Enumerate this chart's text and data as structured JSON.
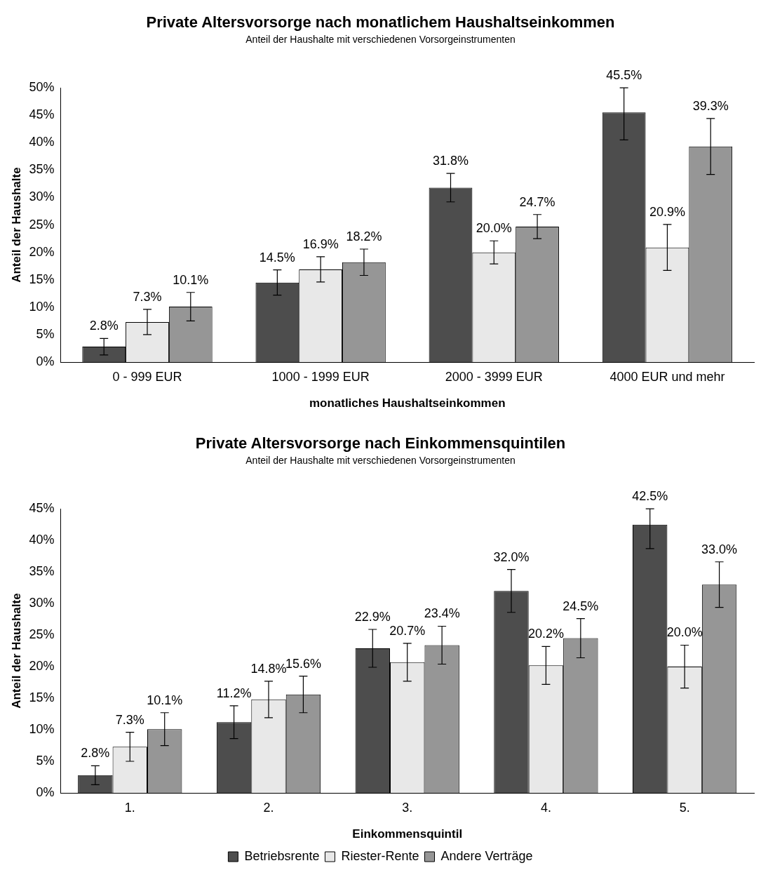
{
  "chart_data": [
    {
      "type": "bar",
      "title": "Private Altersvorsorge nach monatlichem Haushaltseinkommen",
      "subtitle": "Anteil der Haushalte mit verschiedenen Vorsorgeinstrumenten",
      "xlabel": "monatliches Haushaltseinkommen",
      "ylabel": "Anteil der Haushalte",
      "categories": [
        "0 - 999 EUR",
        "1000 - 1999 EUR",
        "2000 - 3999 EUR",
        "4000 EUR und mehr"
      ],
      "series": [
        {
          "color": "#4d4d4d",
          "values": [
            2.8,
            14.5,
            31.8,
            45.5
          ],
          "value_labels": [
            "2.8%",
            "14.5%",
            "31.8%",
            "45.5%"
          ],
          "errors": [
            1.5,
            2.3,
            2.6,
            [
              40.5,
              50
            ]
          ]
        },
        {
          "color": "#e8e8e8",
          "values": [
            7.3,
            16.9,
            20.0,
            20.9
          ],
          "value_labels": [
            "7.3%",
            "16.9%",
            "20.0%",
            "20.9%"
          ],
          "errors": [
            2.3,
            2.3,
            2.1,
            4.2
          ]
        },
        {
          "color": "#969696",
          "values": [
            10.1,
            18.2,
            24.7,
            39.3
          ],
          "value_labels": [
            "10.1%",
            "18.2%",
            "24.7%",
            "39.3%"
          ],
          "errors": [
            2.6,
            2.4,
            2.2,
            5.1
          ]
        }
      ],
      "ylim": [
        0,
        50
      ],
      "yticks": [
        {
          "value": 0,
          "label": "0%"
        },
        {
          "value": 5,
          "label": "5%"
        },
        {
          "value": 10,
          "label": "10%"
        },
        {
          "value": 15,
          "label": "15%"
        },
        {
          "value": 20,
          "label": "20%"
        },
        {
          "value": 25,
          "label": "25%"
        },
        {
          "value": 30,
          "label": "30%"
        },
        {
          "value": 35,
          "label": "35%"
        },
        {
          "value": 40,
          "label": "40%"
        },
        {
          "value": 45,
          "label": "45%"
        },
        {
          "value": 50,
          "label": "50%"
        }
      ],
      "grid": false,
      "legend": false
    },
    {
      "type": "bar",
      "title": "Private Altersvorsorge nach Einkommensquintilen",
      "subtitle": "Anteil der Haushalte mit verschiedenen Vorsorgeinstrumenten",
      "xlabel": "Einkommensquintil",
      "ylabel": "Anteil der Haushalte",
      "categories": [
        "1.",
        "2.",
        "3.",
        "4.",
        "5."
      ],
      "series": [
        {
          "name": "Betriebsrente",
          "color": "#4d4d4d",
          "values": [
            2.8,
            11.2,
            22.9,
            32.0,
            42.5
          ],
          "value_labels": [
            "2.8%",
            "11.2%",
            "22.9%",
            "32.0%",
            "42.5%"
          ],
          "errors": [
            1.5,
            2.6,
            3.0,
            3.4,
            [
              38.7,
              45
            ]
          ]
        },
        {
          "name": "Riester-Rente",
          "color": "#e8e8e8",
          "values": [
            7.3,
            14.8,
            20.7,
            20.2,
            20.0
          ],
          "value_labels": [
            "7.3%",
            "14.8%",
            "20.7%",
            "20.2%",
            "20.0%"
          ],
          "errors": [
            2.3,
            2.9,
            3.0,
            3.0,
            3.4
          ]
        },
        {
          "name": "Andere Verträge",
          "color": "#969696",
          "values": [
            10.1,
            15.6,
            23.4,
            24.5,
            33.0
          ],
          "value_labels": [
            "10.1%",
            "15.6%",
            "23.4%",
            "24.5%",
            "33.0%"
          ],
          "errors": [
            2.6,
            2.9,
            3.0,
            3.1,
            3.6
          ]
        }
      ],
      "ylim": [
        0,
        45
      ],
      "yticks": [
        {
          "value": 0,
          "label": "0%"
        },
        {
          "value": 5,
          "label": "5%"
        },
        {
          "value": 10,
          "label": "10%"
        },
        {
          "value": 15,
          "label": "15%"
        },
        {
          "value": 20,
          "label": "20%"
        },
        {
          "value": 25,
          "label": "25%"
        },
        {
          "value": 30,
          "label": "30%"
        },
        {
          "value": 35,
          "label": "35%"
        },
        {
          "value": 40,
          "label": "40%"
        },
        {
          "value": 45,
          "label": "45%"
        }
      ],
      "grid": false,
      "legend": "bottom"
    }
  ]
}
